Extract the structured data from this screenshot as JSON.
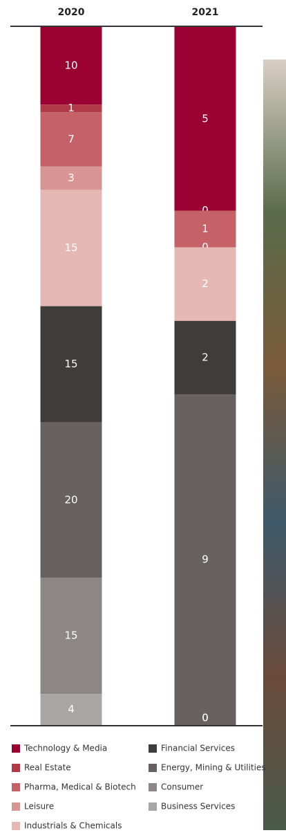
{
  "chart_data": {
    "type": "bar",
    "stacked": true,
    "legend": "bottom",
    "categories": [
      "2020",
      "2021"
    ],
    "series": [
      {
        "name": "Technology & Media",
        "color": "#9b0032",
        "values": [
          10,
          5
        ]
      },
      {
        "name": "Real Estate",
        "color": "#b23a48",
        "values": [
          1,
          0
        ]
      },
      {
        "name": "Pharma, Medical & Biotech",
        "color": "#c46268",
        "values": [
          7,
          1
        ]
      },
      {
        "name": "Leisure",
        "color": "#d99594",
        "values": [
          3,
          0
        ]
      },
      {
        "name": "Industrials & Chemicals",
        "color": "#e6b8b4",
        "values": [
          15,
          2
        ]
      },
      {
        "name": "Financial Services",
        "color": "#3f3c3a",
        "values": [
          15,
          2
        ]
      },
      {
        "name": "Energy, Mining & Utilities",
        "color": "#676260",
        "values": [
          20,
          9
        ]
      },
      {
        "name": "Consumer",
        "color": "#8c8786",
        "values": [
          15,
          0
        ]
      },
      {
        "name": "Business Services",
        "color": "#a9a5a4",
        "values": [
          4,
          0
        ]
      }
    ]
  }
}
